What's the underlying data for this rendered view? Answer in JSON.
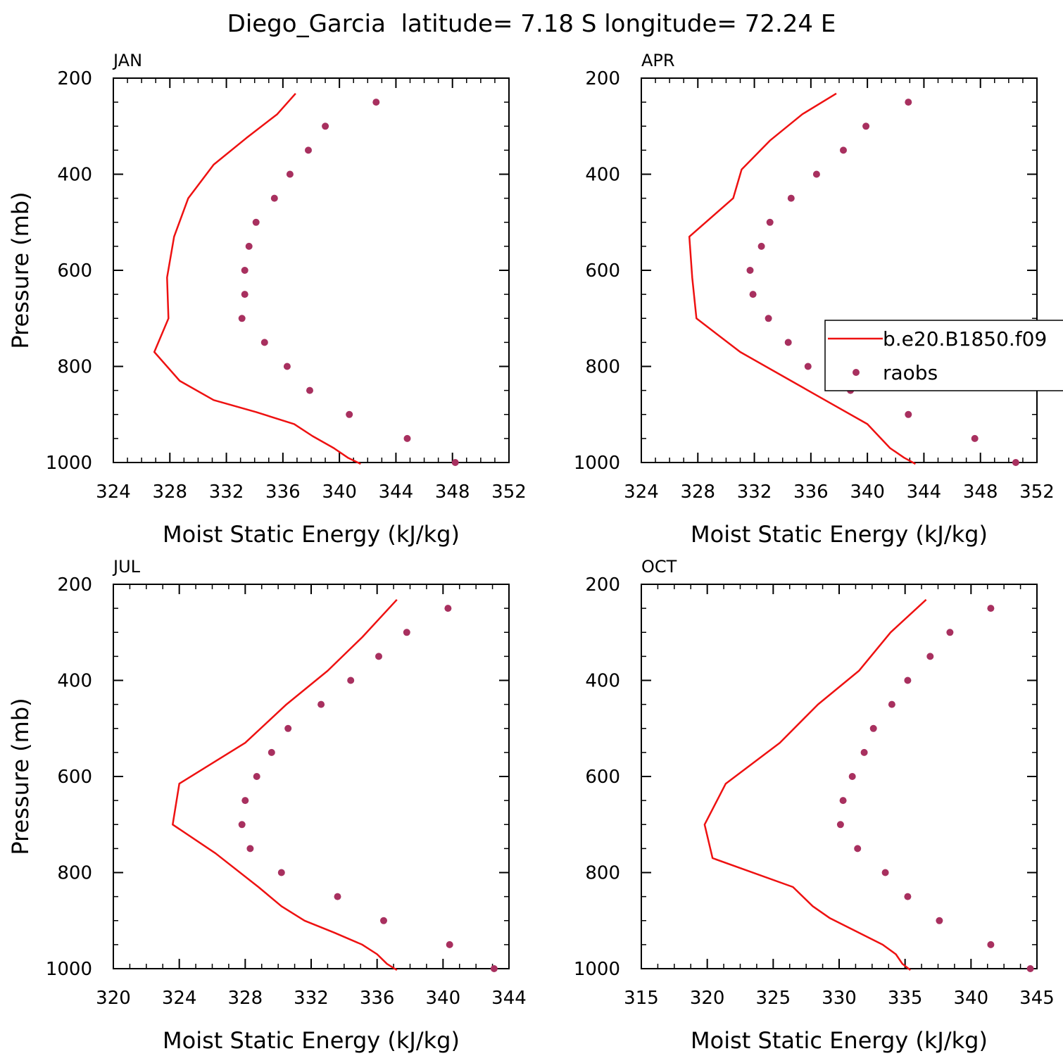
{
  "title": "Diego_Garcia  latitude= 7.18 S longitude= 72.24 E",
  "colors": {
    "model": "#ee1111",
    "obs": "#a8305f",
    "axis": "#000000"
  },
  "legend": {
    "model_label": "b.e20.B1850.f09",
    "obs_label": "raobs"
  },
  "chart_data": [
    {
      "type": "line",
      "panel": "JAN",
      "xlabel": "Moist Static Energy (kJ/kg)",
      "ylabel": "Pressure (mb)",
      "xlim": [
        324,
        352
      ],
      "ylim": [
        200,
        1000
      ],
      "y_inverted": true,
      "xticks": [
        324,
        328,
        332,
        336,
        340,
        344,
        348,
        352
      ],
      "yticks": [
        200,
        400,
        600,
        800,
        1000
      ],
      "series": [
        {
          "name": "b.e20.B1850.f09",
          "style": "line",
          "x": [
            336.9,
            335.6,
            333.4,
            331.1,
            329.3,
            328.3,
            327.8,
            327.9,
            326.9,
            328.7,
            331.1,
            334.1,
            336.8,
            338.1,
            339.6,
            340.6,
            341.5
          ],
          "y": [
            232,
            275,
            325,
            380,
            450,
            530,
            615,
            700,
            770,
            830,
            870,
            895,
            920,
            945,
            970,
            990,
            1003
          ]
        },
        {
          "name": "raobs",
          "style": "markers",
          "x": [
            342.6,
            339.0,
            337.8,
            336.5,
            335.4,
            334.1,
            333.6,
            333.3,
            333.3,
            333.1,
            334.7,
            336.3,
            337.9,
            340.7,
            344.8,
            348.2
          ],
          "y": [
            250,
            300,
            350,
            400,
            450,
            500,
            550,
            600,
            650,
            700,
            750,
            800,
            850,
            900,
            950,
            1000
          ]
        }
      ]
    },
    {
      "type": "line",
      "panel": "APR",
      "xlabel": "Moist Static Energy (kJ/kg)",
      "ylabel": "",
      "xlim": [
        324,
        352
      ],
      "ylim": [
        200,
        1000
      ],
      "y_inverted": true,
      "xticks": [
        324,
        328,
        332,
        336,
        340,
        344,
        348,
        352
      ],
      "yticks": [
        200,
        400,
        600,
        800,
        1000
      ],
      "legend_position": "right",
      "series": [
        {
          "name": "b.e20.B1850.f09",
          "style": "line",
          "x": [
            337.8,
            335.4,
            333.1,
            331.1,
            330.5,
            327.4,
            327.6,
            327.9,
            331.0,
            334.6,
            337.0,
            340.0,
            341.6,
            342.6,
            343.4
          ],
          "y": [
            232,
            275,
            330,
            390,
            450,
            530,
            615,
            700,
            770,
            830,
            870,
            920,
            970,
            990,
            1003
          ]
        },
        {
          "name": "raobs",
          "style": "markers",
          "x": [
            342.9,
            339.9,
            338.3,
            336.4,
            334.6,
            333.1,
            332.5,
            331.7,
            331.9,
            333.0,
            334.4,
            335.8,
            338.8,
            342.9,
            347.6,
            350.5
          ],
          "y": [
            250,
            300,
            350,
            400,
            450,
            500,
            550,
            600,
            650,
            700,
            750,
            800,
            850,
            900,
            950,
            1000
          ]
        }
      ]
    },
    {
      "type": "line",
      "panel": "JUL",
      "xlabel": "Moist Static Energy (kJ/kg)",
      "ylabel": "Pressure (mb)",
      "xlim": [
        320,
        344
      ],
      "ylim": [
        200,
        1000
      ],
      "y_inverted": true,
      "xticks": [
        320,
        324,
        328,
        332,
        336,
        340,
        344
      ],
      "yticks": [
        200,
        400,
        600,
        800,
        1000
      ],
      "series": [
        {
          "name": "b.e20.B1850.f09",
          "style": "line",
          "x": [
            337.2,
            335.1,
            333.0,
            330.5,
            328.0,
            324.0,
            323.6,
            326.2,
            328.8,
            330.2,
            331.6,
            333.4,
            335.1,
            336.0,
            336.6,
            337.2
          ],
          "y": [
            232,
            310,
            380,
            450,
            530,
            615,
            700,
            760,
            830,
            870,
            900,
            925,
            950,
            970,
            990,
            1003
          ]
        },
        {
          "name": "raobs",
          "style": "markers",
          "x": [
            340.3,
            337.8,
            336.1,
            334.4,
            332.6,
            330.6,
            329.6,
            328.7,
            328.0,
            327.8,
            328.3,
            330.2,
            333.6,
            336.4,
            340.4,
            343.1
          ],
          "y": [
            250,
            300,
            350,
            400,
            450,
            500,
            550,
            600,
            650,
            700,
            750,
            800,
            850,
            900,
            950,
            1000
          ]
        }
      ]
    },
    {
      "type": "line",
      "panel": "OCT",
      "xlabel": "Moist Static Energy (kJ/kg)",
      "ylabel": "",
      "xlim": [
        315,
        345
      ],
      "ylim": [
        200,
        1000
      ],
      "y_inverted": true,
      "xticks": [
        315,
        320,
        325,
        330,
        335,
        340,
        345
      ],
      "yticks": [
        200,
        400,
        600,
        800,
        1000
      ],
      "series": [
        {
          "name": "b.e20.B1850.f09",
          "style": "line",
          "x": [
            336.6,
            333.9,
            331.5,
            328.4,
            325.5,
            321.4,
            319.8,
            320.4,
            326.5,
            328.0,
            329.3,
            333.3,
            334.3,
            334.8,
            335.4
          ],
          "y": [
            232,
            300,
            380,
            450,
            530,
            615,
            700,
            770,
            830,
            870,
            895,
            950,
            970,
            990,
            1003
          ]
        },
        {
          "name": "raobs",
          "style": "markers",
          "x": [
            341.5,
            338.4,
            336.9,
            335.2,
            334.0,
            332.6,
            331.9,
            331.0,
            330.3,
            330.1,
            331.4,
            333.5,
            335.2,
            337.6,
            341.5,
            344.5
          ],
          "y": [
            250,
            300,
            350,
            400,
            450,
            500,
            550,
            600,
            650,
            700,
            750,
            800,
            850,
            900,
            950,
            1000
          ]
        }
      ]
    }
  ]
}
